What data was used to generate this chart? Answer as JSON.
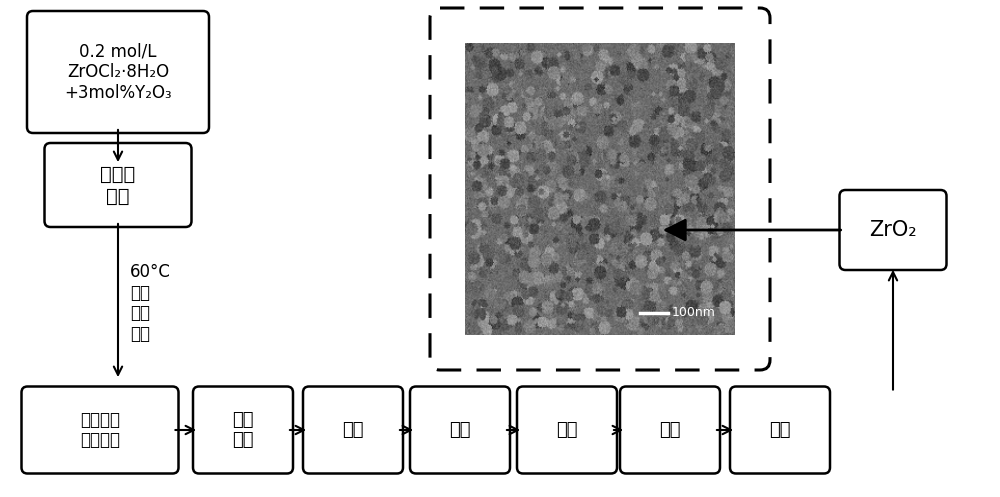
{
  "bg_color": "#ffffff",
  "box1_text": "0.2 mol/L\nZrOCl₂·8H₂O\n+3mol%Y₂O₃",
  "box2_text": "混合盐\n溶液",
  "box3_text": "一定浓度\n的碱溶液",
  "box4_text": "反向\n沉淠",
  "box5_text": "陈化",
  "box6_text": "洗涂",
  "box7_text": "干燥",
  "box8_text": "研磨",
  "box9_text": "锻烧",
  "box10_text": "ZrO₂",
  "side_text": "60°C\n恒温\n磁力\n搦拌",
  "scalebar_text": "100nm",
  "figsize": [
    10.0,
    4.97
  ],
  "dpi": 100
}
